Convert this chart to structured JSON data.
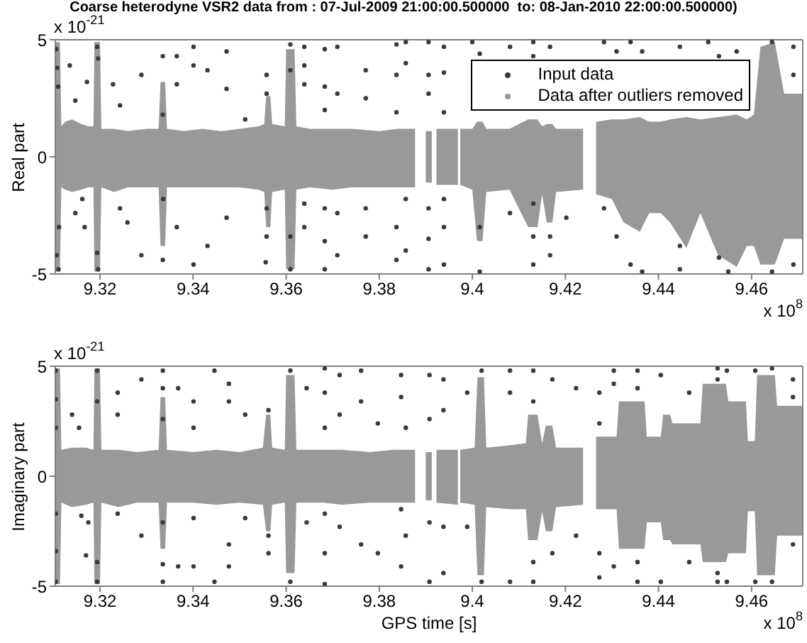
{
  "chart_data": [
    {
      "type": "scatter",
      "title": "Coarse heterodyne VSR2 data from : 07-Jul-2009 21:00:00.500000  to: 08-Jan-2010 22:00:00.500000)",
      "ylabel": "Real part",
      "annotations": [
        "x 10$^{-21}$",
        "x 10$^{8}$"
      ],
      "xlim": [
        9.3104,
        9.471
      ],
      "xticks": [
        9.32,
        9.34,
        9.36,
        9.38,
        9.4,
        9.42,
        9.44,
        9.46
      ],
      "ylim": [
        -5,
        5
      ],
      "yticks": [
        -5,
        0,
        5
      ],
      "marker": "circle",
      "legend": "top right",
      "series": [
        {
          "name": "Input data",
          "color": "#3a3a3a",
          "x": [
            9.3106,
            9.3108,
            9.311,
            9.3107,
            9.3111,
            9.3112,
            9.3135,
            9.3147,
            9.3172,
            9.3162,
            9.3147,
            9.3167,
            9.3194,
            9.3196,
            9.3194,
            9.3196,
            9.3228,
            9.3243,
            9.3243,
            9.3259,
            9.3289,
            9.3289,
            9.3335,
            9.3335,
            9.3336,
            9.3335,
            9.3365,
            9.3365,
            9.3365,
            9.3401,
            9.3401,
            9.3401,
            9.3431,
            9.3431,
            9.3472,
            9.3472,
            9.3472,
            9.3512,
            9.3558,
            9.3558,
            9.3558,
            9.3558,
            9.3556,
            9.3609,
            9.3609,
            9.3609,
            9.3609,
            9.3639,
            9.3639,
            9.3639,
            9.3639,
            9.3639,
            9.3683,
            9.3683,
            9.3683,
            9.3683,
            9.3683,
            9.3683,
            9.371,
            9.371,
            9.371,
            9.371,
            9.3771,
            9.3771,
            9.3771,
            9.3771,
            9.3837,
            9.3837,
            9.3837,
            9.3837,
            9.3837,
            9.3857,
            9.3857,
            9.3857,
            9.3857,
            9.3906,
            9.3906,
            9.3906,
            9.3906,
            9.3906,
            9.3906,
            9.3939,
            9.3939,
            9.3939,
            9.3939,
            9.3939,
            9.3939,
            9.4,
            9.4016,
            9.4016,
            9.4016,
            9.4081,
            9.4081,
            9.4131,
            9.4131,
            9.4131,
            9.4131,
            9.4131,
            9.4167,
            9.4167,
            9.4167,
            9.4202,
            9.4283,
            9.4283,
            9.431,
            9.431,
            9.434,
            9.434,
            9.4365,
            9.4365,
            9.4446,
            9.4446,
            9.4446,
            9.4507,
            9.453,
            9.453,
            9.455,
            9.4568,
            9.4644,
            9.4644,
            9.469,
            9.469,
            9.469
          ],
          "values": [
            4.6,
            3.8,
            3.0,
            -4.2,
            -4.8,
            -3.0,
            3.9,
            2.4,
            3.2,
            -1.8,
            -2.4,
            -3.0,
            4.7,
            4.2,
            -4.1,
            -4.8,
            3.1,
            2.2,
            -2.2,
            -2.8,
            3.5,
            -4.2,
            4.3,
            1.8,
            -1.8,
            -4.4,
            4.3,
            3.1,
            -3.0,
            4.7,
            3.9,
            -4.6,
            3.7,
            -3.8,
            4.5,
            2.9,
            -2.6,
            1.6,
            3.5,
            2.7,
            -2.2,
            -3.4,
            -4.5,
            4.8,
            3.7,
            -3.4,
            -4.8,
            4.7,
            3.9,
            3.1,
            -2.0,
            -3.0,
            4.6,
            3.0,
            2.0,
            -2.2,
            -3.6,
            -4.8,
            4.7,
            2.7,
            -2.4,
            -4.2,
            3.7,
            2.5,
            -2.2,
            -3.4,
            4.8,
            3.5,
            1.9,
            -3.0,
            -4.4,
            4.9,
            4.0,
            -1.8,
            -4.0,
            4.9,
            3.5,
            2.7,
            -2.2,
            -3.5,
            -4.8,
            4.7,
            3.6,
            1.9,
            -1.8,
            -3.0,
            -4.6,
            4.9,
            4.4,
            -3.0,
            -4.9,
            4.7,
            -2.4,
            4.9,
            4.3,
            -2.0,
            -3.4,
            -4.6,
            4.7,
            -3.4,
            -4.2,
            -2.6,
            4.9,
            -2.2,
            4.5,
            -3.4,
            4.9,
            -4.6,
            4.5,
            -4.9,
            4.7,
            -3.8,
            -4.8,
            4.9,
            4.3,
            -4.3,
            -4.9,
            4.5,
            4.9,
            -4.9,
            4.7,
            3.5,
            -4.6
          ]
        },
        {
          "name": "Data after outliers removed",
          "color": "#999999",
          "x": [
            9.3104,
            9.3114,
            9.3117,
            9.3125,
            9.314,
            9.316,
            9.3175,
            9.3186,
            9.3188,
            9.32,
            9.3203,
            9.323,
            9.326,
            9.33,
            9.3326,
            9.333,
            9.334,
            9.3344,
            9.338,
            9.342,
            9.346,
            9.35,
            9.354,
            9.3553,
            9.3557,
            9.3566,
            9.357,
            9.3597,
            9.36,
            9.3618,
            9.3622,
            9.365,
            9.37,
            9.374,
            9.38,
            9.384,
            9.3877,
            9.3889,
            9.39,
            9.3913,
            9.3918,
            9.3923,
            9.3969,
            9.3971,
            9.3974,
            9.4,
            9.401,
            9.4022,
            9.403,
            9.408,
            9.412,
            9.414,
            9.415,
            9.416,
            9.4172,
            9.418,
            9.4238,
            9.425,
            9.4266,
            9.43,
            9.4325,
            9.436,
            9.438,
            9.4405,
            9.4425,
            9.446,
            9.449,
            9.4528,
            9.4568,
            9.459,
            9.4605,
            9.4619,
            9.465,
            9.467,
            9.471
          ],
          "values": [
            null,
            null,
            null,
            null,
            null,
            null,
            null,
            null,
            null,
            null,
            null,
            null,
            null,
            null,
            null,
            null,
            null,
            null,
            null,
            null,
            null,
            null,
            null,
            null,
            null,
            null,
            null,
            null,
            null,
            null,
            null,
            null,
            null,
            null,
            null,
            null,
            null,
            null,
            null,
            null,
            null,
            null,
            null,
            null,
            null,
            null,
            null,
            null,
            null,
            null,
            null,
            null,
            null,
            null,
            null,
            null,
            null,
            null,
            null,
            null,
            null,
            null,
            null,
            null,
            null,
            null,
            null,
            null,
            null,
            null,
            null,
            null,
            null,
            null,
            null
          ],
          "lower": [
            -4.9,
            -4.9,
            -1.3,
            -1.4,
            -1.5,
            -1.4,
            -1.3,
            -1.3,
            -4.9,
            -4.9,
            -1.3,
            -1.5,
            -1.3,
            -1.3,
            -1.3,
            -3.8,
            -3.8,
            -1.3,
            -1.3,
            -1.3,
            -1.3,
            -1.3,
            -1.4,
            -1.5,
            -3.0,
            -3.0,
            -1.5,
            -1.4,
            -4.8,
            -4.8,
            -1.4,
            -1.3,
            -1.4,
            -1.3,
            -1.3,
            -1.3,
            -1.3,
            null,
            -1.1,
            -1.1,
            null,
            -1.2,
            -1.2,
            null,
            -1.2,
            -1.4,
            -3.6,
            -3.6,
            -1.5,
            -1.4,
            -3.0,
            -3.0,
            -1.6,
            -2.8,
            -2.8,
            -1.5,
            -1.4,
            null,
            -1.6,
            -1.8,
            -2.8,
            -3.2,
            -2.4,
            -2.4,
            -2.8,
            -3.9,
            -2.4,
            -4.2,
            -4.7,
            -3.8,
            -3.8,
            -4.6,
            -4.6,
            -3.5,
            -3.5
          ],
          "upper": [
            4.9,
            4.9,
            1.3,
            1.5,
            1.6,
            1.4,
            1.3,
            1.3,
            4.9,
            4.9,
            1.2,
            1.2,
            1.1,
            1.2,
            1.2,
            3.2,
            3.2,
            1.2,
            1.1,
            1.2,
            1.1,
            1.2,
            1.3,
            1.4,
            2.6,
            2.6,
            1.4,
            1.3,
            4.6,
            4.6,
            1.3,
            1.2,
            1.2,
            1.2,
            1.1,
            1.2,
            1.2,
            null,
            1.1,
            1.1,
            null,
            1.2,
            1.2,
            null,
            1.2,
            1.2,
            1.5,
            1.5,
            1.2,
            1.2,
            1.6,
            1.6,
            1.3,
            1.4,
            1.4,
            1.2,
            1.2,
            null,
            1.5,
            1.6,
            1.6,
            1.7,
            1.5,
            1.5,
            1.6,
            1.7,
            1.6,
            1.7,
            1.8,
            1.6,
            1.8,
            4.7,
            4.9,
            2.7,
            2.7
          ]
        }
      ]
    },
    {
      "type": "scatter",
      "xlabel": "GPS time [s]",
      "ylabel": "Imaginary part",
      "annotations": [
        "x 10$^{-21}$",
        "x 10$^{8}$"
      ],
      "xlim": [
        9.3104,
        9.471
      ],
      "xticks": [
        9.32,
        9.34,
        9.36,
        9.38,
        9.4,
        9.42,
        9.44,
        9.46
      ],
      "ylim": [
        -5,
        5
      ],
      "yticks": [
        -5,
        0,
        5
      ],
      "marker": "circle",
      "series": [
        {
          "color": "#3a3a3a",
          "x": [
            9.3105,
            9.3105,
            9.3105,
            9.3105,
            9.3105,
            9.3105,
            9.314,
            9.3155,
            9.316,
            9.3175,
            9.317,
            9.3194,
            9.3194,
            9.3194,
            9.3194,
            9.3238,
            9.3238,
            9.3238,
            9.3289,
            9.3289,
            9.3335,
            9.3335,
            9.3335,
            9.3335,
            9.3335,
            9.3335,
            9.3368,
            9.3368,
            9.3401,
            9.3401,
            9.3401,
            9.3401,
            9.3446,
            9.3446,
            9.3477,
            9.3477,
            9.3477,
            9.3477,
            9.3512,
            9.3512,
            9.3562,
            9.3562,
            9.3562,
            9.3609,
            9.3609,
            9.3644,
            9.3644,
            9.3683,
            9.3683,
            9.3683,
            9.3683,
            9.3683,
            9.3683,
            9.3715,
            9.3715,
            9.3715,
            9.3761,
            9.3761,
            9.3761,
            9.3797,
            9.3797,
            9.3847,
            9.3847,
            9.3847,
            9.3847,
            9.3857,
            9.3857,
            9.3908,
            9.3908,
            9.3908,
            9.3908,
            9.3938,
            9.3938,
            9.3938,
            9.3938,
            9.3989,
            9.3989,
            9.402,
            9.402,
            9.4081,
            9.4081,
            9.4081,
            9.4131,
            9.4131,
            9.4131,
            9.4131,
            9.4172,
            9.4172,
            9.4223,
            9.4223,
            9.4273,
            9.4273,
            9.4273,
            9.4273,
            9.4304,
            9.4304,
            9.4304,
            9.4355,
            9.4355,
            9.4355,
            9.4355,
            9.4405,
            9.4405,
            9.4466,
            9.4466,
            9.4527,
            9.4527,
            9.4527,
            9.4527,
            9.4547,
            9.4547,
            9.4608,
            9.4608,
            9.4644,
            9.4644,
            9.4689,
            9.4689,
            9.4689
          ],
          "values": [
            4.8,
            3.5,
            2.2,
            -1.7,
            -3.4,
            -4.8,
            2.8,
            2.2,
            -1.8,
            -2.1,
            -3.6,
            4.8,
            3.4,
            -3.9,
            -4.8,
            3.8,
            2.8,
            -1.7,
            4.4,
            -2.7,
            4.8,
            4.0,
            2.6,
            -2.1,
            -4.0,
            -4.8,
            4.0,
            -4.1,
            3.4,
            2.2,
            -1.9,
            -4.1,
            4.8,
            -4.8,
            4.2,
            3.4,
            -3.1,
            -4.1,
            2.8,
            -1.9,
            3.0,
            -2.7,
            -3.5,
            4.8,
            -4.8,
            4.0,
            -2.1,
            4.9,
            3.8,
            2.2,
            -1.7,
            -3.5,
            -4.9,
            4.6,
            2.8,
            -2.3,
            4.8,
            3.4,
            -3.1,
            2.4,
            -3.5,
            4.6,
            3.6,
            -1.5,
            -4.1,
            2.2,
            -2.7,
            4.6,
            2.6,
            -2.1,
            -4.8,
            4.4,
            3.0,
            -2.3,
            -4.4,
            3.8,
            -2.3,
            4.8,
            -4.8,
            4.8,
            3.8,
            -4.8,
            4.8,
            3.4,
            -3.9,
            -4.8,
            4.4,
            -3.5,
            4.0,
            -2.7,
            3.8,
            2.4,
            -3.5,
            -4.6,
            4.8,
            4.2,
            -4.1,
            4.8,
            4.0,
            -3.9,
            -4.8,
            4.6,
            -4.8,
            3.8,
            -3.9,
            4.9,
            4.4,
            -4.4,
            -4.8,
            4.8,
            -4.8,
            4.8,
            -4.8,
            4.9,
            -4.8,
            4.4,
            3.6,
            -3.1
          ]
        },
        {
          "color": "#999999",
          "x": [
            9.3104,
            9.3114,
            9.3117,
            9.314,
            9.317,
            9.3186,
            9.3188,
            9.32,
            9.3203,
            9.324,
            9.328,
            9.3326,
            9.333,
            9.334,
            9.3344,
            9.34,
            9.345,
            9.35,
            9.355,
            9.3557,
            9.3566,
            9.357,
            9.3597,
            9.36,
            9.3618,
            9.3622,
            9.368,
            9.372,
            9.378,
            9.383,
            9.3877,
            9.3889,
            9.39,
            9.3913,
            9.3918,
            9.3923,
            9.3969,
            9.3971,
            9.3974,
            9.4005,
            9.4011,
            9.4025,
            9.403,
            9.408,
            9.4115,
            9.412,
            9.414,
            9.415,
            9.4158,
            9.4172,
            9.418,
            9.4238,
            9.425,
            9.4266,
            9.431,
            9.4315,
            9.437,
            9.4375,
            9.4405,
            9.441,
            9.4425,
            9.443,
            9.449,
            9.4495,
            9.4545,
            9.455,
            9.4588,
            9.4592,
            9.4607,
            9.4612,
            9.465,
            9.4655,
            9.471
          ],
          "values": [
            null,
            null,
            null,
            null,
            null,
            null,
            null,
            null,
            null,
            null,
            null,
            null,
            null,
            null,
            null,
            null,
            null,
            null,
            null,
            null,
            null,
            null,
            null,
            null,
            null,
            null,
            null,
            null,
            null,
            null,
            null,
            null,
            null,
            null,
            null,
            null,
            null,
            null,
            null,
            null,
            null,
            null,
            null,
            null,
            null,
            null,
            null,
            null,
            null,
            null,
            null,
            null,
            null,
            null,
            null,
            null,
            null,
            null,
            null,
            null,
            null,
            null,
            null,
            null,
            null,
            null,
            null,
            null,
            null,
            null,
            null,
            null,
            null
          ],
          "lower": [
            -4.9,
            -4.9,
            -1.2,
            -1.4,
            -1.3,
            -1.2,
            -4.9,
            -4.9,
            -1.2,
            -1.4,
            -1.2,
            -1.2,
            -3.3,
            -3.3,
            -1.2,
            -1.2,
            -1.3,
            -1.2,
            -1.3,
            -2.5,
            -2.5,
            -1.3,
            -1.2,
            -4.4,
            -4.4,
            -1.2,
            -1.2,
            -1.3,
            -1.2,
            -1.2,
            -1.2,
            null,
            -1.1,
            -1.1,
            null,
            -1.2,
            -1.3,
            null,
            -1.2,
            -1.3,
            -4.5,
            -4.5,
            -1.4,
            -1.5,
            -1.5,
            -2.9,
            -2.9,
            -1.6,
            -2.5,
            -2.5,
            -1.4,
            -1.3,
            null,
            -1.5,
            -1.5,
            -3.3,
            -3.3,
            -2.1,
            -2.1,
            -2.9,
            -2.9,
            -3.1,
            -3.1,
            -3.9,
            -3.9,
            -3.5,
            -3.5,
            -1.6,
            -1.6,
            -4.5,
            -4.5,
            -2.7,
            -2.7
          ],
          "upper": [
            4.9,
            4.9,
            1.2,
            1.3,
            1.3,
            1.2,
            4.9,
            4.9,
            1.2,
            1.2,
            1.1,
            1.2,
            3.6,
            3.6,
            1.2,
            1.1,
            1.2,
            1.1,
            1.3,
            2.8,
            2.8,
            1.3,
            1.2,
            4.6,
            4.6,
            1.2,
            1.2,
            1.2,
            1.1,
            1.2,
            1.2,
            null,
            1.1,
            1.1,
            null,
            1.2,
            1.2,
            null,
            1.2,
            1.3,
            4.5,
            4.5,
            1.3,
            1.4,
            1.5,
            2.8,
            2.8,
            1.5,
            2.3,
            2.3,
            1.3,
            1.3,
            null,
            1.8,
            1.8,
            3.4,
            3.4,
            1.8,
            1.8,
            2.8,
            2.8,
            2.4,
            2.4,
            4.2,
            4.2,
            3.4,
            3.4,
            1.6,
            1.6,
            4.6,
            4.6,
            3.2,
            3.2
          ]
        }
      ]
    }
  ]
}
